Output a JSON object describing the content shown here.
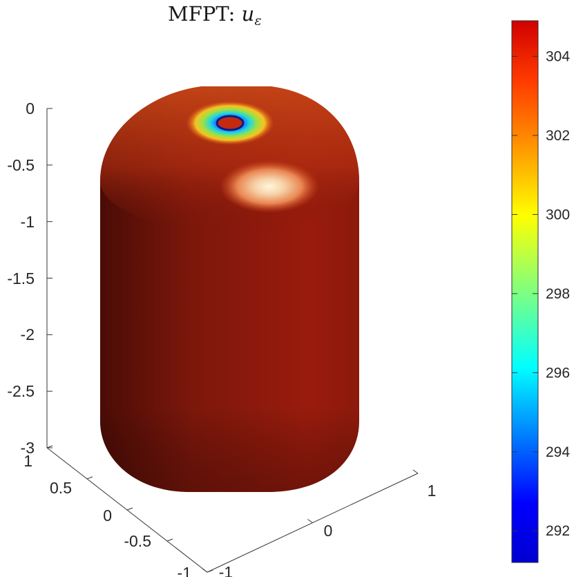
{
  "chart_data": {
    "type": "3d-surface",
    "title_text": "MFPT: ",
    "title_var": "u",
    "title_sub": "ε",
    "xlabel": "",
    "ylabel": "",
    "zlabel": "",
    "x_ticks": [
      "-1",
      "0",
      "1"
    ],
    "y_ticks": [
      "-1",
      "-0.5",
      "0",
      "0.5",
      "1"
    ],
    "z_ticks": [
      "0",
      "-0.5",
      "-1",
      "-1.5",
      "-2",
      "-2.5",
      "-3"
    ],
    "xlim": [
      -1,
      1
    ],
    "ylim": [
      -1,
      1
    ],
    "zlim": [
      -3,
      0
    ],
    "colorbar": {
      "ticks": [
        292,
        294,
        296,
        298,
        300,
        302,
        304
      ],
      "range": [
        291.2,
        304.9
      ],
      "colormap": "jet"
    },
    "surface": {
      "shape": "capsule",
      "dominant_value": 304,
      "absorbing_spot_value": 291.5,
      "absorbing_spot_location": "top pole"
    },
    "colors": {
      "body_light": "#c42a10",
      "body_dark": "#4a0c06",
      "highlight": "#fff6dc"
    }
  }
}
